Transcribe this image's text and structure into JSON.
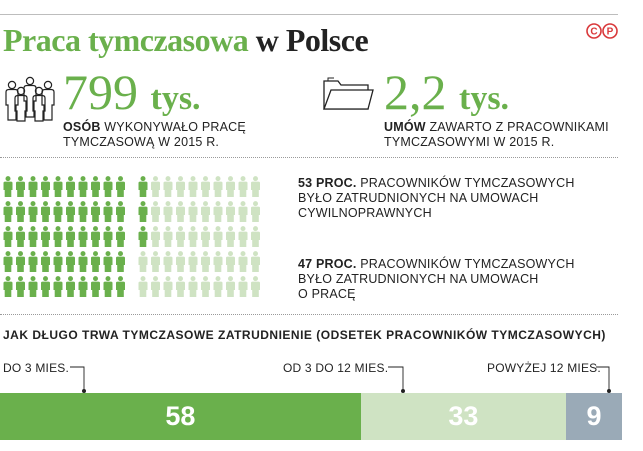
{
  "title": {
    "part1": "Praca tymczasowa",
    "part2": "w Polsce"
  },
  "stat1": {
    "value": "799",
    "unit": "tys.",
    "caption_bold": "OSÓB",
    "caption_line1": " WYKONYWAŁO PRACĘ",
    "caption_line2": "TYMCZASOWĄ W 2015 R."
  },
  "stat2": {
    "value": "2,2",
    "unit": "tys.",
    "caption_bold": "UMÓW",
    "caption_line1": " ZAWARTO Z PRACOWNIKAMI",
    "caption_line2": "TYMCZASOWYMI W 2015 R."
  },
  "icons": {
    "people": "people-group-icon",
    "folder": "folder-icon",
    "person": "person-icon",
    "logo": "cp-logo-icon"
  },
  "colors": {
    "dark_green": "#6ab04c",
    "light_green": "#cfe3c3",
    "gray_blue": "#9aaab7",
    "text": "#222222"
  },
  "legend": {
    "a_bold": "53 PROC.",
    "a_line1": " PRACOWNIKÓW TYMCZASOWYCH",
    "a_line2": "BYŁO ZATRUDNIONYCH NA UMOWACH",
    "a_line3": "CYWILNOPRAWNYCH",
    "b_bold": "47 PROC.",
    "b_line1": " PRACOWNIKÓW TYMCZASOWYCH",
    "b_line2": "BYŁO ZATRUDNIONYCH NA UMOWACH",
    "b_line3": "O PRACĘ"
  },
  "duration": {
    "title": "JAK DŁUGO TRWA TYMCZASOWE ZATRUDNIENIE (ODSETEK PRACOWNIKÓW TYMCZASOWYCH)",
    "labels": [
      "DO 3 MIES.",
      "OD 3 DO 12 MIES.",
      "POWYŻEJ 12 MIES."
    ],
    "values": [
      "58",
      "33",
      "9"
    ]
  },
  "chart_data": [
    {
      "type": "pictogram",
      "title": "",
      "categories": [
        "53 PROC.",
        "47 PROC."
      ],
      "values": [
        53,
        47
      ],
      "unit": "%"
    },
    {
      "type": "bar",
      "stacked": true,
      "title": "JAK DŁUGO TRWA TYMCZASOWE ZATRUDNIENIE (ODSETEK PRACOWNIKÓW TYMCZASOWYCH)",
      "categories": [
        "DO 3 MIES.",
        "OD 3 DO 12 MIES.",
        "POWYŻEJ 12 MIES."
      ],
      "values": [
        58,
        33,
        9
      ],
      "colors": [
        "#6ab04c",
        "#cfe3c3",
        "#9aaab7"
      ]
    }
  ]
}
